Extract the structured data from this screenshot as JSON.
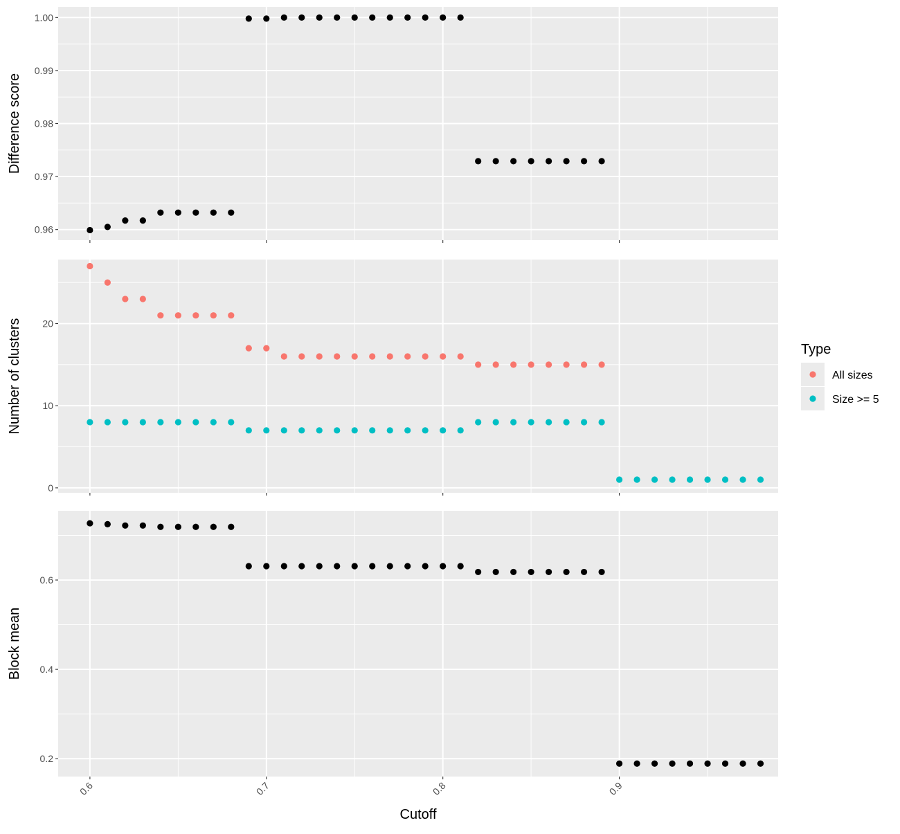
{
  "chart_data": {
    "type": "scatter",
    "layout": "faceted-vertical",
    "x_axis": {
      "label": "Cutoff",
      "range": [
        0.582,
        0.99
      ],
      "ticks": [
        0.6,
        0.7,
        0.8,
        0.9
      ],
      "tick_labels": [
        "0.6",
        "0.7",
        "0.8",
        "0.9"
      ],
      "tick_label_rotation": "45deg"
    },
    "grid": true,
    "background": "#ebebeb",
    "panels": [
      {
        "ylabel": "Difference score",
        "ylim": [
          0.958,
          1.002
        ],
        "ticks": [
          0.96,
          0.97,
          0.98,
          0.99,
          1.0
        ],
        "tick_labels": [
          "0.96",
          "0.97",
          "0.98",
          "0.99",
          "1.00"
        ],
        "series": [
          {
            "color": "#000000",
            "x": [
              0.6,
              0.61,
              0.62,
              0.63,
              0.64,
              0.65,
              0.66,
              0.67,
              0.68,
              0.69,
              0.7,
              0.71,
              0.72,
              0.73,
              0.74,
              0.75,
              0.76,
              0.77,
              0.78,
              0.79,
              0.8,
              0.81,
              0.82,
              0.83,
              0.84,
              0.85,
              0.86,
              0.87,
              0.88,
              0.89
            ],
            "y": [
              0.9599,
              0.9605,
              0.9617,
              0.9617,
              0.9632,
              0.9632,
              0.9632,
              0.9632,
              0.9632,
              0.9998,
              0.9998,
              1.0,
              1.0,
              1.0,
              1.0,
              1.0,
              1.0,
              1.0,
              1.0,
              1.0,
              1.0,
              1.0,
              0.9729,
              0.9729,
              0.9729,
              0.9729,
              0.9729,
              0.9729,
              0.9729,
              0.9729
            ]
          }
        ]
      },
      {
        "ylabel": "Number of clusters",
        "ylim": [
          -0.6,
          27.8
        ],
        "ticks": [
          0,
          10,
          20
        ],
        "tick_labels": [
          "0",
          "10",
          "20"
        ],
        "series": [
          {
            "name": "All sizes",
            "color": "#f8766d",
            "x": [
              0.6,
              0.61,
              0.62,
              0.63,
              0.64,
              0.65,
              0.66,
              0.67,
              0.68,
              0.69,
              0.7,
              0.71,
              0.72,
              0.73,
              0.74,
              0.75,
              0.76,
              0.77,
              0.78,
              0.79,
              0.8,
              0.81,
              0.82,
              0.83,
              0.84,
              0.85,
              0.86,
              0.87,
              0.88,
              0.89
            ],
            "y": [
              27,
              25,
              23,
              23,
              21,
              21,
              21,
              21,
              21,
              17,
              17,
              16,
              16,
              16,
              16,
              16,
              16,
              16,
              16,
              16,
              16,
              16,
              15,
              15,
              15,
              15,
              15,
              15,
              15,
              15
            ]
          },
          {
            "name": "Size >= 5",
            "color": "#00bfc4",
            "x": [
              0.6,
              0.61,
              0.62,
              0.63,
              0.64,
              0.65,
              0.66,
              0.67,
              0.68,
              0.69,
              0.7,
              0.71,
              0.72,
              0.73,
              0.74,
              0.75,
              0.76,
              0.77,
              0.78,
              0.79,
              0.8,
              0.81,
              0.82,
              0.83,
              0.84,
              0.85,
              0.86,
              0.87,
              0.88,
              0.89,
              0.9,
              0.91,
              0.92,
              0.93,
              0.94,
              0.95,
              0.96,
              0.97,
              0.98
            ],
            "y": [
              8,
              8,
              8,
              8,
              8,
              8,
              8,
              8,
              8,
              7,
              7,
              7,
              7,
              7,
              7,
              7,
              7,
              7,
              7,
              7,
              7,
              7,
              8,
              8,
              8,
              8,
              8,
              8,
              8,
              8,
              1,
              1,
              1,
              1,
              1,
              1,
              1,
              1,
              1
            ]
          }
        ]
      },
      {
        "ylabel": "Block mean",
        "ylim": [
          0.16,
          0.755
        ],
        "ticks": [
          0.2,
          0.4,
          0.6
        ],
        "tick_labels": [
          "0.2",
          "0.4",
          "0.6"
        ],
        "series": [
          {
            "color": "#000000",
            "x": [
              0.6,
              0.61,
              0.62,
              0.63,
              0.64,
              0.65,
              0.66,
              0.67,
              0.68,
              0.69,
              0.7,
              0.71,
              0.72,
              0.73,
              0.74,
              0.75,
              0.76,
              0.77,
              0.78,
              0.79,
              0.8,
              0.81,
              0.82,
              0.83,
              0.84,
              0.85,
              0.86,
              0.87,
              0.88,
              0.89,
              0.9,
              0.91,
              0.92,
              0.93,
              0.94,
              0.95,
              0.96,
              0.97,
              0.98
            ],
            "y": [
              0.727,
              0.725,
              0.722,
              0.722,
              0.719,
              0.719,
              0.719,
              0.719,
              0.719,
              0.631,
              0.631,
              0.631,
              0.631,
              0.631,
              0.631,
              0.631,
              0.631,
              0.631,
              0.631,
              0.631,
              0.631,
              0.631,
              0.618,
              0.618,
              0.618,
              0.618,
              0.618,
              0.618,
              0.618,
              0.618,
              0.189,
              0.189,
              0.189,
              0.189,
              0.189,
              0.189,
              0.189,
              0.189,
              0.189
            ]
          }
        ]
      }
    ],
    "legend": {
      "title": "Type",
      "placement": "right",
      "entries": [
        {
          "label": "All sizes",
          "color": "#f8766d"
        },
        {
          "label": "Size >= 5",
          "color": "#00bfc4"
        }
      ]
    }
  }
}
